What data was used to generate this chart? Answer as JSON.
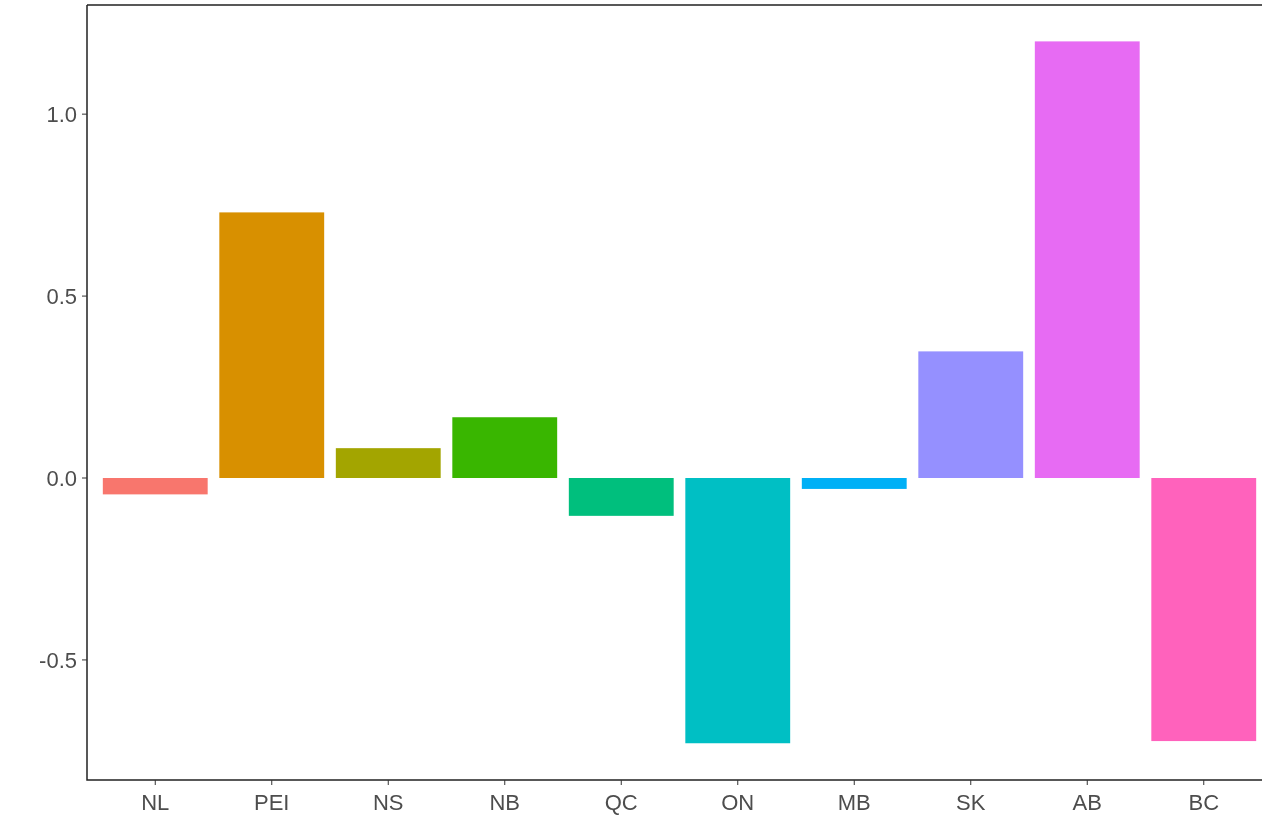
{
  "chart_data": {
    "type": "bar",
    "categories": [
      "NL",
      "PEI",
      "NS",
      "NB",
      "QC",
      "ON",
      "MB",
      "SK",
      "AB",
      "BC"
    ],
    "values": [
      -0.045,
      0.73,
      0.082,
      0.167,
      -0.104,
      -0.729,
      -0.03,
      0.348,
      1.2,
      -0.723
    ],
    "colors": [
      "#f8766d",
      "#d89000",
      "#a3a500",
      "#39b600",
      "#00bf7d",
      "#00bfc4",
      "#00b0f6",
      "#9590ff",
      "#e76bf3",
      "#ff62bc"
    ],
    "ylim": [
      -0.83,
      1.3
    ],
    "yticks": [
      {
        "value": -0.5,
        "label": "-0.5"
      },
      {
        "value": 0,
        "label": "0.0"
      },
      {
        "value": 0.5,
        "label": "0.5"
      },
      {
        "value": 1,
        "label": "1.0"
      }
    ],
    "grid": false
  }
}
